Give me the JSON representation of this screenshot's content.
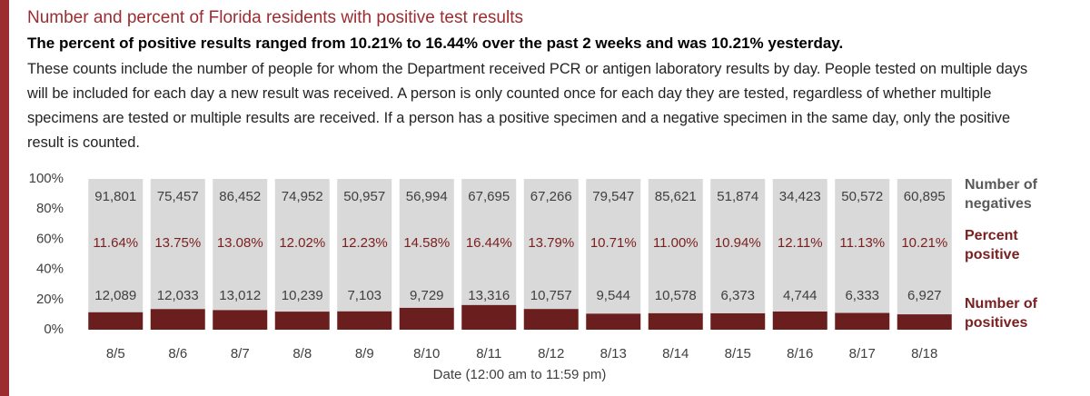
{
  "chart_data": {
    "type": "stacked_percent_bar",
    "title": "Number and percent of Florida residents with positive test results",
    "subtitle": "The percent of positive results ranged from 10.21% to 16.44% over the past 2 weeks and was 10.21% yesterday.",
    "description": "These counts include the number of people for whom the Department received PCR or antigen laboratory results by day. People tested on multiple days will be included for each day a new result was received. A person is only counted once for each day they are tested, regardless of whether multiple specimens are tested or multiple results are received. If a person has a positive specimen and a negative specimen in the same day, only the positive result is counted.",
    "x_label": "Date (12:00 am to 11:59 pm)",
    "categories": [
      "8/5",
      "8/6",
      "8/7",
      "8/8",
      "8/9",
      "8/10",
      "8/11",
      "8/12",
      "8/13",
      "8/14",
      "8/15",
      "8/16",
      "8/17",
      "8/18"
    ],
    "series": [
      {
        "name": "Number of positives",
        "color": "#6b1e1e",
        "values": [
          12089,
          12033,
          13012,
          10239,
          7103,
          9729,
          13316,
          10757,
          9544,
          10578,
          6373,
          4744,
          6333,
          6927
        ],
        "value_labels": [
          "12,089",
          "12,033",
          "13,012",
          "10,239",
          "7,103",
          "9,729",
          "13,316",
          "10,757",
          "9,544",
          "10,578",
          "6,373",
          "4,744",
          "6,333",
          "6,927"
        ]
      },
      {
        "name": "Number of negatives",
        "color": "#d9d9d9",
        "values": [
          91801,
          75457,
          86452,
          74952,
          50957,
          56994,
          67695,
          67266,
          79547,
          85621,
          51874,
          34423,
          50572,
          60895
        ],
        "value_labels": [
          "91,801",
          "75,457",
          "86,452",
          "74,952",
          "50,957",
          "56,994",
          "67,695",
          "67,266",
          "79,547",
          "85,621",
          "51,874",
          "34,423",
          "50,572",
          "60,895"
        ]
      }
    ],
    "percent_positive": {
      "name": "Percent positive",
      "labels": [
        "11.64%",
        "13.75%",
        "13.08%",
        "12.02%",
        "12.23%",
        "14.58%",
        "16.44%",
        "13.79%",
        "10.71%",
        "11.00%",
        "10.94%",
        "12.11%",
        "11.13%",
        "10.21%"
      ]
    },
    "ylim": [
      0,
      100
    ],
    "yticks": [
      {
        "value": 0,
        "label": "0%"
      },
      {
        "value": 20,
        "label": "20%"
      },
      {
        "value": 40,
        "label": "40%"
      },
      {
        "value": 60,
        "label": "60%"
      },
      {
        "value": 80,
        "label": "80%"
      },
      {
        "value": 100,
        "label": "100%"
      }
    ]
  }
}
